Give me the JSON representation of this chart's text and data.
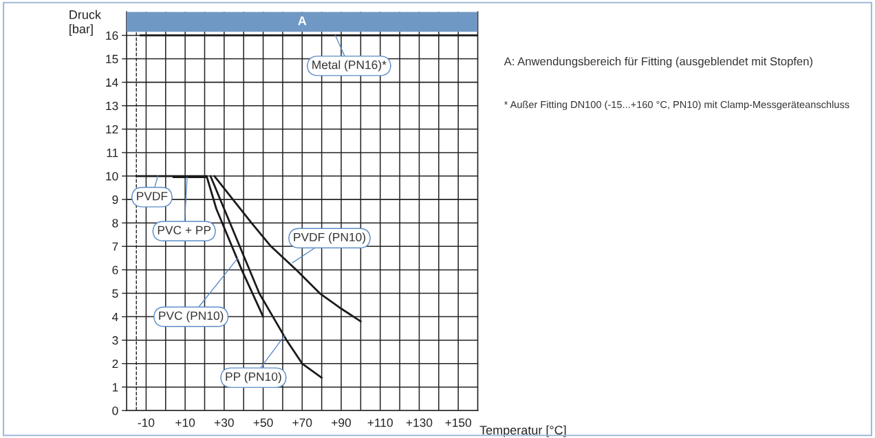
{
  "chart_data": {
    "type": "line",
    "xlabel": "Temperatur [°C]",
    "ylabel": "Druck\n[bar]",
    "xlim": [
      -20,
      160
    ],
    "ylim": [
      0,
      17
    ],
    "xticks": [
      {
        "value": -10,
        "label": "-10"
      },
      {
        "value": 0,
        "label": null
      },
      {
        "value": 10,
        "label": "+10"
      },
      {
        "value": 20,
        "label": null
      },
      {
        "value": 30,
        "label": "+30"
      },
      {
        "value": 40,
        "label": null
      },
      {
        "value": 50,
        "label": "+50"
      },
      {
        "value": 60,
        "label": null
      },
      {
        "value": 70,
        "label": "+70"
      },
      {
        "value": 80,
        "label": null
      },
      {
        "value": 90,
        "label": "+90"
      },
      {
        "value": 100,
        "label": null
      },
      {
        "value": 110,
        "label": "+110"
      },
      {
        "value": 120,
        "label": null
      },
      {
        "value": 130,
        "label": "+130"
      },
      {
        "value": 140,
        "label": null
      },
      {
        "value": 150,
        "label": "+150"
      }
    ],
    "yticks": [
      0,
      1,
      2,
      3,
      4,
      5,
      6,
      7,
      8,
      9,
      10,
      11,
      12,
      13,
      14,
      15,
      16
    ],
    "grid": true,
    "marker": "none",
    "line_style": "solid",
    "series": [
      {
        "color": "#1a1a1a",
        "x": [
          -13,
          160
        ],
        "values": [
          16,
          16
        ]
      },
      {
        "color": "#1a1a1a",
        "x": [
          -15,
          21
        ],
        "values": [
          10,
          10
        ]
      },
      {
        "color": "#1a1a1a",
        "x": [
          4,
          21
        ],
        "values": [
          9.95,
          9.95
        ]
      },
      {
        "color": "#1a1a1a",
        "x": [
          21,
          26,
          39,
          50
        ],
        "values": [
          10,
          8.6,
          6,
          4
        ]
      },
      {
        "color": "#1a1a1a",
        "x": [
          23,
          30,
          48,
          55,
          62,
          70,
          80
        ],
        "values": [
          10,
          8.6,
          5,
          4,
          3,
          2,
          1.4
        ]
      },
      {
        "color": "#1a1a1a",
        "x": [
          25,
          44,
          54,
          67,
          79,
          89,
          100
        ],
        "values": [
          10,
          8,
          7,
          6,
          5,
          4.4,
          3.8
        ]
      }
    ],
    "ref_lines": [
      {
        "axis": "x",
        "value": -15,
        "line_style": "dashed",
        "color": "#1a1a1a"
      }
    ],
    "bands": [
      {
        "axis": "y",
        "from": 16.15,
        "to": 17,
        "label": "A",
        "color": "#7098c4"
      }
    ],
    "annotations": [
      {
        "text": "Metal (PN16)*",
        "x": 87,
        "y": 16
      },
      {
        "text": "PVDF",
        "x": -4,
        "y": 10
      },
      {
        "text": "PVC + PP",
        "x": 11,
        "y": 9.95
      },
      {
        "text": "PVC (PN10)",
        "x": 37,
        "y": 6.5
      },
      {
        "text": "PVDF (PN10)",
        "x": 65,
        "y": 6.3
      },
      {
        "text": "PP (PN10)",
        "x": 61,
        "y": 3.2
      },
      "A: Anwendungsbereich für Fitting (ausgeblendet mit Stopfen)",
      "* Außer Fitting DN100 (-15...+160 °C, PN10) mit Clamp-Messgeräteanschluss"
    ]
  }
}
